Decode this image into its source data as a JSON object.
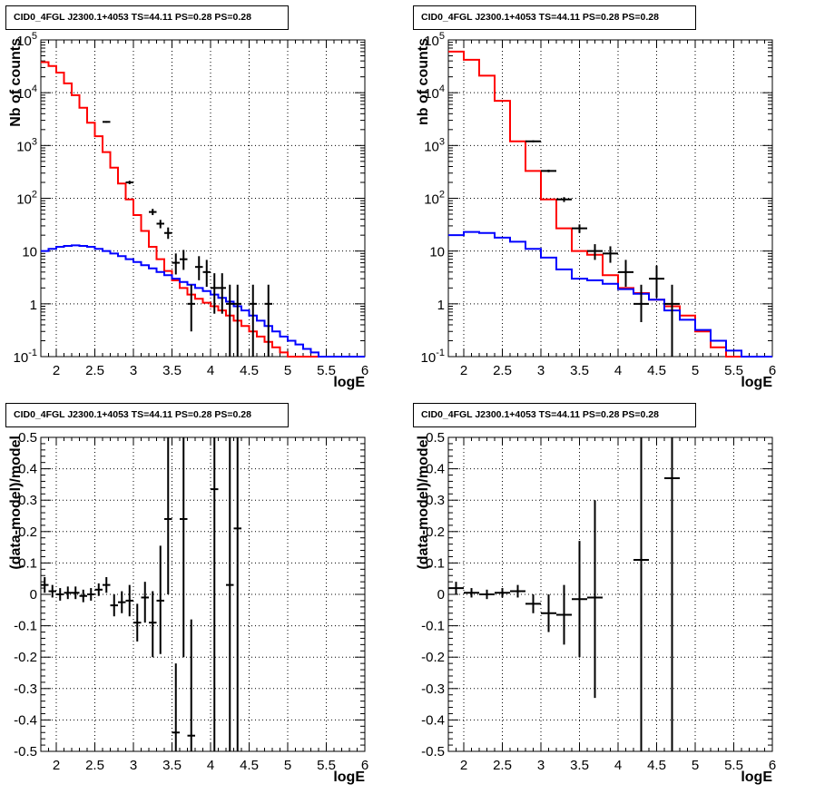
{
  "chart_data": [
    {
      "type": "histogram",
      "title": "CID0_4FGL J2300.1+4053 TS=44.11 PS=0.28 PS=0.28",
      "xlabel": "logE",
      "ylabel": "Nb of counts",
      "log_y": true,
      "grid": true,
      "xlim": [
        1.8,
        6.0
      ],
      "ylim": [
        0.1,
        100000
      ],
      "xticks": [
        "2",
        "2.5",
        "3",
        "3.5",
        "4",
        "4.5",
        "5",
        "5.5",
        "6"
      ],
      "yticks": [
        {
          "value": 0.1,
          "mantissa": "10",
          "exp": "-1"
        },
        {
          "value": 1,
          "mantissa": "1",
          "exp": ""
        },
        {
          "value": 10,
          "mantissa": "10",
          "exp": ""
        },
        {
          "value": 100,
          "mantissa": "10",
          "exp": "2"
        },
        {
          "value": 1000,
          "mantissa": "10",
          "exp": "3"
        },
        {
          "value": 10000,
          "mantissa": "10",
          "exp": "4"
        },
        {
          "value": 100000,
          "mantissa": "10",
          "exp": "5"
        }
      ],
      "bin_edges": [
        1.8,
        1.9,
        2.0,
        2.1,
        2.2,
        2.3,
        2.4,
        2.5,
        2.6,
        2.7,
        2.8,
        2.9,
        3.0,
        3.1,
        3.2,
        3.3,
        3.4,
        3.5,
        3.6,
        3.7,
        3.8,
        3.9,
        4.0,
        4.1,
        4.2,
        4.3,
        4.4,
        4.5,
        4.6,
        4.7,
        4.8,
        4.9,
        5.0,
        5.1,
        5.2,
        5.3,
        5.4,
        5.5,
        5.6,
        5.7,
        5.8,
        5.9,
        6.0
      ],
      "series": [
        {
          "color": "#ff0000",
          "style": "step",
          "values": [
            38000,
            32000,
            24000,
            15000,
            9000,
            5200,
            2700,
            1500,
            750,
            380,
            190,
            95,
            48,
            24,
            12,
            7,
            4.2,
            2.8,
            2.0,
            1.5,
            1.25,
            1.05,
            0.9,
            0.75,
            0.6,
            0.48,
            0.38,
            0.3,
            0.24,
            0.19,
            0.15,
            0.12,
            0.1,
            0.1,
            0.1,
            0.1,
            0.1,
            0.1,
            0.1,
            0.1,
            0.1,
            0.1
          ]
        },
        {
          "color": "#0000ff",
          "style": "step",
          "values": [
            10,
            11,
            12,
            12.5,
            12.8,
            12.5,
            12,
            11,
            10,
            9,
            8,
            7,
            6.2,
            5.4,
            4.7,
            4.0,
            3.5,
            3.0,
            2.6,
            2.3,
            2.0,
            1.75,
            1.5,
            1.3,
            1.1,
            0.9,
            0.75,
            0.6,
            0.48,
            0.38,
            0.3,
            0.24,
            0.2,
            0.17,
            0.14,
            0.12,
            0.1,
            0.1,
            0.1,
            0.1,
            0.1,
            0.1
          ]
        },
        {
          "color": "#000000",
          "style": "errorbar",
          "points": [
            {
              "x": 2.65,
              "y": 2800,
              "xerr": 0.05,
              "ylo": 2700,
              "yhi": 2900
            },
            {
              "x": 2.95,
              "y": 200,
              "xerr": 0.05,
              "ylo": 185,
              "yhi": 215
            },
            {
              "x": 3.25,
              "y": 55,
              "xerr": 0.05,
              "ylo": 48,
              "yhi": 63
            },
            {
              "x": 3.35,
              "y": 33,
              "xerr": 0.05,
              "ylo": 27,
              "yhi": 39
            },
            {
              "x": 3.45,
              "y": 22,
              "xerr": 0.05,
              "ylo": 17,
              "yhi": 28
            },
            {
              "x": 3.55,
              "y": 6,
              "xerr": 0.05,
              "ylo": 3.6,
              "yhi": 9
            },
            {
              "x": 3.65,
              "y": 7,
              "xerr": 0.05,
              "ylo": 4.4,
              "yhi": 10.5
            },
            {
              "x": 3.75,
              "y": 1,
              "xerr": 0.05,
              "ylo": 0.3,
              "yhi": 2.3
            },
            {
              "x": 3.85,
              "y": 5,
              "xerr": 0.05,
              "ylo": 2.8,
              "yhi": 8
            },
            {
              "x": 3.95,
              "y": 4,
              "xerr": 0.05,
              "ylo": 2.1,
              "yhi": 6.8
            },
            {
              "x": 4.05,
              "y": 2,
              "xerr": 0.05,
              "ylo": 0.65,
              "yhi": 3.8
            },
            {
              "x": 4.15,
              "y": 2,
              "xerr": 0.05,
              "ylo": 0.65,
              "yhi": 3.8
            },
            {
              "x": 4.25,
              "y": 1,
              "xerr": 0.05,
              "ylo": 0.1,
              "yhi": 2.3
            },
            {
              "x": 4.35,
              "y": 1,
              "xerr": 0.05,
              "ylo": 0.1,
              "yhi": 2.3
            },
            {
              "x": 4.55,
              "y": 1,
              "xerr": 0.05,
              "ylo": 0.1,
              "yhi": 2.3
            },
            {
              "x": 4.75,
              "y": 1,
              "xerr": 0.05,
              "ylo": 0.1,
              "yhi": 2.3
            }
          ]
        }
      ]
    },
    {
      "type": "histogram",
      "title": "CID0_4FGL J2300.1+4053 TS=44.11 PS=0.28 PS=0.28",
      "xlabel": "logE",
      "ylabel": "nb of counts",
      "log_y": true,
      "grid": true,
      "xlim": [
        1.8,
        6.0
      ],
      "ylim": [
        0.1,
        100000
      ],
      "xticks": [
        "2",
        "2.5",
        "3",
        "3.5",
        "4",
        "4.5",
        "5",
        "5.5",
        "6"
      ],
      "yticks": [
        {
          "value": 0.1,
          "mantissa": "10",
          "exp": "-1"
        },
        {
          "value": 1,
          "mantissa": "1",
          "exp": ""
        },
        {
          "value": 10,
          "mantissa": "10",
          "exp": ""
        },
        {
          "value": 100,
          "mantissa": "10",
          "exp": "2"
        },
        {
          "value": 1000,
          "mantissa": "10",
          "exp": "3"
        },
        {
          "value": 10000,
          "mantissa": "10",
          "exp": "4"
        },
        {
          "value": 100000,
          "mantissa": "10",
          "exp": "5"
        }
      ],
      "bin_edges": [
        1.8,
        2.0,
        2.2,
        2.4,
        2.6,
        2.8,
        3.0,
        3.2,
        3.4,
        3.6,
        3.8,
        4.0,
        4.2,
        4.4,
        4.6,
        4.8,
        5.0,
        5.2,
        5.4,
        5.6,
        5.8,
        6.0
      ],
      "series": [
        {
          "color": "#ff0000",
          "style": "step",
          "values": [
            60000,
            42000,
            21000,
            7000,
            1200,
            330,
            95,
            27,
            10,
            8.5,
            3.5,
            2.0,
            1.6,
            1.2,
            0.9,
            0.6,
            0.3,
            0.15,
            0.1,
            0.1,
            0.1
          ]
        },
        {
          "color": "#0000ff",
          "style": "step",
          "values": [
            20,
            23,
            22,
            18,
            15,
            11,
            7.5,
            4.5,
            3,
            2.8,
            2.4,
            1.9,
            1.55,
            1.2,
            0.75,
            0.5,
            0.32,
            0.2,
            0.13,
            0.1,
            0.1
          ]
        },
        {
          "color": "#000000",
          "style": "errorbar",
          "points": [
            {
              "x": 2.9,
              "y": 1200,
              "xerr": 0.1,
              "ylo": 1150,
              "yhi": 1250
            },
            {
              "x": 3.1,
              "y": 330,
              "xerr": 0.1,
              "ylo": 312,
              "yhi": 348
            },
            {
              "x": 3.3,
              "y": 95,
              "xerr": 0.1,
              "ylo": 85,
              "yhi": 105
            },
            {
              "x": 3.5,
              "y": 27,
              "xerr": 0.1,
              "ylo": 22,
              "yhi": 32
            },
            {
              "x": 3.7,
              "y": 10,
              "xerr": 0.1,
              "ylo": 6.8,
              "yhi": 13.5
            },
            {
              "x": 3.9,
              "y": 9,
              "xerr": 0.1,
              "ylo": 6,
              "yhi": 12.3
            },
            {
              "x": 4.1,
              "y": 4,
              "xerr": 0.1,
              "ylo": 2.1,
              "yhi": 6.8
            },
            {
              "x": 4.3,
              "y": 1,
              "xerr": 0.1,
              "ylo": 0.45,
              "yhi": 2.3
            },
            {
              "x": 4.5,
              "y": 3,
              "xerr": 0.1,
              "ylo": 1.3,
              "yhi": 5.3
            },
            {
              "x": 4.7,
              "y": 1,
              "xerr": 0.1,
              "ylo": 0.1,
              "yhi": 2.3
            }
          ]
        }
      ]
    },
    {
      "type": "scatter",
      "title": "CID0_4FGL J2300.1+4053 TS=44.11 PS=0.28 PS=0.28",
      "xlabel": "logE",
      "ylabel": "(data-model)/model",
      "log_y": false,
      "grid": true,
      "xlim": [
        1.8,
        6.0
      ],
      "ylim": [
        -0.5,
        0.5
      ],
      "xticks": [
        "2",
        "2.5",
        "3",
        "3.5",
        "4",
        "4.5",
        "5",
        "5.5",
        "6"
      ],
      "yticks": [
        "-0.5",
        "-0.4",
        "-0.3",
        "-0.2",
        "-0.1",
        "0",
        "0.1",
        "0.2",
        "0.3",
        "0.4",
        "0.5"
      ],
      "series": [
        {
          "color": "#000000",
          "style": "errorbar",
          "points": [
            {
              "x": 1.85,
              "y": 0.03,
              "xerr": 0.05,
              "ylo": 0.005,
              "yhi": 0.055
            },
            {
              "x": 1.95,
              "y": 0.01,
              "xerr": 0.05,
              "ylo": -0.01,
              "yhi": 0.03
            },
            {
              "x": 2.05,
              "y": 0.0,
              "xerr": 0.05,
              "ylo": -0.02,
              "yhi": 0.02
            },
            {
              "x": 2.15,
              "y": 0.005,
              "xerr": 0.05,
              "ylo": -0.015,
              "yhi": 0.025
            },
            {
              "x": 2.25,
              "y": 0.005,
              "xerr": 0.05,
              "ylo": -0.015,
              "yhi": 0.025
            },
            {
              "x": 2.35,
              "y": -0.005,
              "xerr": 0.05,
              "ylo": -0.025,
              "yhi": 0.015
            },
            {
              "x": 2.45,
              "y": 0.0,
              "xerr": 0.05,
              "ylo": -0.02,
              "yhi": 0.02
            },
            {
              "x": 2.55,
              "y": 0.015,
              "xerr": 0.05,
              "ylo": -0.005,
              "yhi": 0.035
            },
            {
              "x": 2.65,
              "y": 0.03,
              "xerr": 0.05,
              "ylo": 0.005,
              "yhi": 0.055
            },
            {
              "x": 2.75,
              "y": -0.035,
              "xerr": 0.05,
              "ylo": -0.07,
              "yhi": 0.0
            },
            {
              "x": 2.85,
              "y": -0.025,
              "xerr": 0.05,
              "ylo": -0.06,
              "yhi": 0.01
            },
            {
              "x": 2.95,
              "y": -0.02,
              "xerr": 0.05,
              "ylo": -0.07,
              "yhi": 0.03
            },
            {
              "x": 3.05,
              "y": -0.09,
              "xerr": 0.05,
              "ylo": -0.15,
              "yhi": -0.03
            },
            {
              "x": 3.15,
              "y": -0.01,
              "xerr": 0.05,
              "ylo": -0.09,
              "yhi": 0.04
            },
            {
              "x": 3.25,
              "y": -0.09,
              "xerr": 0.05,
              "ylo": -0.2,
              "yhi": 0.01
            },
            {
              "x": 3.35,
              "y": -0.02,
              "xerr": 0.05,
              "ylo": -0.19,
              "yhi": 0.155
            },
            {
              "x": 3.45,
              "y": 0.24,
              "xerr": 0.05,
              "ylo": 0.0,
              "yhi": 0.5
            },
            {
              "x": 3.55,
              "y": -0.44,
              "xerr": 0.05,
              "ylo": -0.5,
              "yhi": -0.22
            },
            {
              "x": 3.65,
              "y": 0.24,
              "xerr": 0.05,
              "ylo": -0.2,
              "yhi": 0.5
            },
            {
              "x": 3.75,
              "y": -0.45,
              "xerr": 0.05,
              "ylo": -0.5,
              "yhi": -0.08
            },
            {
              "x": 4.05,
              "y": 0.335,
              "xerr": 0.05,
              "ylo": -0.5,
              "yhi": 0.5
            },
            {
              "x": 4.25,
              "y": 0.03,
              "xerr": 0.05,
              "ylo": -0.5,
              "yhi": 0.5
            },
            {
              "x": 4.35,
              "y": 0.21,
              "xerr": 0.05,
              "ylo": -0.5,
              "yhi": 0.5
            }
          ]
        }
      ]
    },
    {
      "type": "scatter",
      "title": "CID0_4FGL J2300.1+4053 TS=44.11 PS=0.28 PS=0.28",
      "xlabel": "logE",
      "ylabel": "(data-model)/model",
      "log_y": false,
      "grid": true,
      "xlim": [
        1.8,
        6.0
      ],
      "ylim": [
        -0.5,
        0.5
      ],
      "xticks": [
        "2",
        "2.5",
        "3",
        "3.5",
        "4",
        "4.5",
        "5",
        "5.5",
        "6"
      ],
      "yticks": [
        "-0.5",
        "-0.4",
        "-0.3",
        "-0.2",
        "-0.1",
        "0",
        "0.1",
        "0.2",
        "0.3",
        "0.4",
        "0.5"
      ],
      "series": [
        {
          "color": "#000000",
          "style": "errorbar",
          "points": [
            {
              "x": 1.9,
              "y": 0.02,
              "xerr": 0.1,
              "ylo": 0.0,
              "yhi": 0.04
            },
            {
              "x": 2.1,
              "y": 0.005,
              "xerr": 0.1,
              "ylo": -0.01,
              "yhi": 0.02
            },
            {
              "x": 2.3,
              "y": 0.0,
              "xerr": 0.1,
              "ylo": -0.015,
              "yhi": 0.015
            },
            {
              "x": 2.5,
              "y": 0.005,
              "xerr": 0.1,
              "ylo": -0.01,
              "yhi": 0.02
            },
            {
              "x": 2.7,
              "y": 0.01,
              "xerr": 0.1,
              "ylo": -0.01,
              "yhi": 0.03
            },
            {
              "x": 2.9,
              "y": -0.03,
              "xerr": 0.1,
              "ylo": -0.06,
              "yhi": 0.0
            },
            {
              "x": 3.1,
              "y": -0.06,
              "xerr": 0.1,
              "ylo": -0.12,
              "yhi": 0.0
            },
            {
              "x": 3.3,
              "y": -0.065,
              "xerr": 0.1,
              "ylo": -0.16,
              "yhi": 0.03
            },
            {
              "x": 3.5,
              "y": -0.015,
              "xerr": 0.1,
              "ylo": -0.2,
              "yhi": 0.17
            },
            {
              "x": 3.7,
              "y": -0.01,
              "xerr": 0.1,
              "ylo": -0.33,
              "yhi": 0.3
            },
            {
              "x": 4.3,
              "y": 0.11,
              "xerr": 0.1,
              "ylo": -0.5,
              "yhi": 0.5
            },
            {
              "x": 4.7,
              "y": 0.37,
              "xerr": 0.1,
              "ylo": -0.5,
              "yhi": 0.5
            }
          ]
        }
      ]
    }
  ]
}
